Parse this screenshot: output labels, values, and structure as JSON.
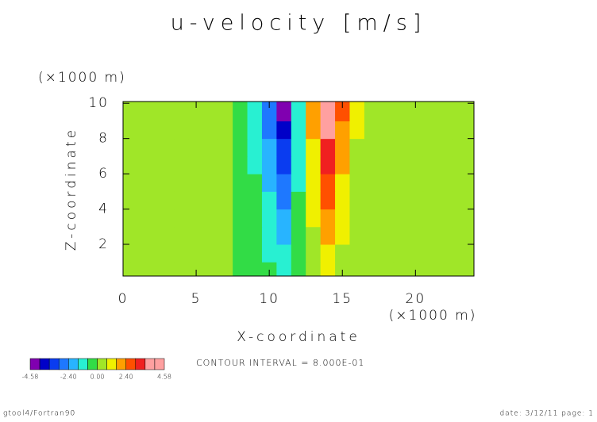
{
  "chart_data": {
    "type": "contour",
    "title": "u-velocity [m/s]",
    "xlabel": "X-coordinate",
    "ylabel": "Z-coordinate",
    "xunit": "(×1000 m)",
    "yunit": "(×1000 m)",
    "xlim": [
      0,
      24
    ],
    "ylim": [
      0.2,
      10.1
    ],
    "xticks": [
      0,
      5,
      10,
      15,
      20
    ],
    "yticks": [
      2,
      4,
      6,
      8,
      10
    ],
    "x": [
      0,
      1,
      2,
      3,
      4,
      5,
      6,
      7,
      8,
      9,
      10,
      11,
      12,
      13,
      14,
      15,
      16,
      17,
      18,
      19,
      20,
      21,
      22,
      23,
      24
    ],
    "z": [
      0.5,
      1.5,
      2.5,
      3.5,
      4.5,
      5.5,
      6.5,
      7.5,
      8.5,
      9.5
    ],
    "values": [
      [
        0,
        0,
        0,
        0,
        0,
        0,
        0,
        0,
        -0.08,
        -0.25,
        -0.59,
        -0.99,
        -0.3,
        0.4,
        0.99,
        0.54,
        0.2,
        0.05,
        0,
        0,
        0,
        0,
        0,
        0,
        0
      ],
      [
        0,
        0,
        0,
        0,
        0,
        0,
        0,
        0,
        -0.11,
        -0.34,
        -0.82,
        -1.37,
        -0.41,
        0.55,
        1.37,
        0.75,
        0.27,
        0.07,
        0,
        0,
        0,
        0,
        0,
        0,
        0
      ],
      [
        0,
        0,
        0,
        0,
        0,
        0,
        0,
        0,
        -0.14,
        -0.44,
        -1.05,
        -1.75,
        -0.53,
        0.7,
        1.75,
        0.96,
        0.35,
        0.09,
        0,
        0,
        0,
        0,
        0,
        0,
        0
      ],
      [
        0,
        0,
        0,
        0,
        0,
        0,
        0,
        0,
        -0.17,
        -0.53,
        -1.28,
        -2.13,
        -0.64,
        0.85,
        2.13,
        1.17,
        0.43,
        0.11,
        0,
        0,
        0,
        0,
        0,
        0,
        0
      ],
      [
        0,
        0,
        0,
        0,
        0,
        0,
        0,
        0,
        -0.2,
        -0.63,
        -1.51,
        -2.51,
        -0.75,
        1.0,
        2.51,
        1.38,
        0.5,
        0.13,
        0,
        0,
        0,
        0,
        0,
        0,
        0
      ],
      [
        0,
        0,
        0,
        0,
        0,
        0,
        0,
        0,
        -0.23,
        -0.72,
        -1.73,
        -2.89,
        -0.87,
        1.16,
        2.89,
        1.59,
        0.58,
        0.14,
        0,
        0,
        0,
        0,
        0,
        0,
        0
      ],
      [
        0,
        0,
        0,
        0,
        0,
        0,
        0,
        0,
        -0.26,
        -0.82,
        -1.96,
        -3.27,
        -0.98,
        1.31,
        3.27,
        1.8,
        0.65,
        0.16,
        0,
        0,
        0,
        0,
        0,
        0,
        0
      ],
      [
        0,
        0,
        0,
        0,
        0,
        0,
        0,
        0,
        -0.29,
        -0.91,
        -2.19,
        -3.65,
        -1.1,
        1.46,
        3.65,
        2.01,
        0.73,
        0.18,
        0,
        0,
        0,
        0,
        0,
        0,
        0
      ],
      [
        0,
        0,
        0,
        0,
        0,
        0,
        0,
        0,
        -0.32,
        -1.01,
        -2.42,
        -4.03,
        -1.21,
        1.61,
        4.03,
        2.22,
        0.81,
        0.2,
        0,
        0,
        0,
        0,
        0,
        0,
        0
      ],
      [
        0,
        0,
        0,
        0,
        0,
        0,
        0,
        0,
        -0.35,
        -1.1,
        -2.65,
        -4.41,
        -1.32,
        1.76,
        4.41,
        2.43,
        0.88,
        0.22,
        0,
        0,
        0,
        0,
        0,
        0,
        0
      ]
    ],
    "levels": [
      -4.58,
      -4.4,
      -4.0,
      -3.2,
      -2.4,
      -1.6,
      -0.8,
      0,
      0.8,
      1.6,
      2.4,
      3.2,
      4.0,
      4.4,
      4.58
    ],
    "colors": [
      "#8000b0",
      "#0000c8",
      "#0a3cf0",
      "#1e78ff",
      "#28b4ff",
      "#28f0d2",
      "#32dc46",
      "#a0e628",
      "#f0f000",
      "#ffa000",
      "#ff5000",
      "#f02020",
      "#ffa0a0",
      "#ffa0a0"
    ],
    "colorbar_labels": [
      {
        "value": -4.58,
        "label": "-4.58"
      },
      {
        "value": -2.4,
        "label": "-2.40"
      },
      {
        "value": 0,
        "label": "0.00"
      },
      {
        "value": 2.4,
        "label": "2.40"
      },
      {
        "value": 4.58,
        "label": "4.58"
      }
    ],
    "contour_interval": "CONTOUR INTERVAL = 8.000E-01",
    "footer_left": "gtool4/Fortran90",
    "footer_right": "date: 3/12/11 page: 1"
  }
}
